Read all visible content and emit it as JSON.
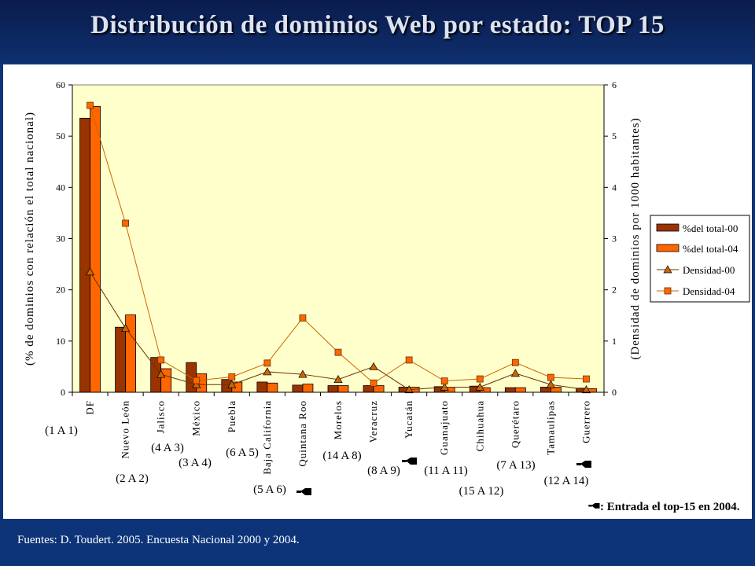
{
  "page": {
    "title": "Distribución de dominios Web por estado: TOP 15",
    "source": "Fuentes: D. Toudert. 2005. Encuesta Nacional 2000 y 2004.",
    "note_text": ": Entrada el top-15 en 2004."
  },
  "colors": {
    "background": "#0d3478",
    "plot_area": "#ffffcc",
    "bar_2000": "#993300",
    "bar_2004": "#ff6600",
    "line_2000": "#663300",
    "line_2004": "#cc6600"
  },
  "chart_data": {
    "type": "bar",
    "title": "",
    "ylabel": "(% de dominios con relación el total nacional)",
    "y2label": "(Densidad de dominios por 1000 habitantes)",
    "ylim": [
      0,
      60
    ],
    "y2lim": [
      0,
      6
    ],
    "yticks": [
      "0",
      "10",
      "20",
      "30",
      "40",
      "50",
      "60"
    ],
    "y2ticks": [
      "0",
      "1",
      "2",
      "3",
      "4",
      "5",
      "6"
    ],
    "legend_position": "right",
    "categories": [
      "DF",
      "Nuevo León",
      "Jalisco",
      "México",
      "Puebla",
      "Baja California",
      "Quintana Roo",
      "Morelos",
      "Veracruz",
      "Yucatán",
      "Guanajuato",
      "Chihuahua",
      "Querétaro",
      "Tamaulipas",
      "Guerrero"
    ],
    "rank_labels": [
      "(1 A 1)",
      "(2 A 2)",
      "(4 A 3)",
      "(3 A 4)",
      "(6 A 5)",
      "(5 A 6)",
      "(14 A 8)",
      "(8 A 9)",
      "(11 A 11)",
      "(15 A 12)",
      "(7 A 13)",
      "(12 A 14)"
    ],
    "new_entry_categories": [
      "Quintana Roo",
      "Yucatán",
      "Guerrero"
    ],
    "series": [
      {
        "name": "%del total-00",
        "kind": "bar",
        "axis": "left",
        "values": [
          53.5,
          12.7,
          6.8,
          5.8,
          2.5,
          2.0,
          1.4,
          1.3,
          1.3,
          1.0,
          1.1,
          1.2,
          0.9,
          1.0,
          0.8
        ]
      },
      {
        "name": "%del total-04",
        "kind": "bar",
        "axis": "left",
        "values": [
          55.8,
          15.1,
          4.6,
          3.6,
          2.0,
          1.8,
          1.6,
          1.3,
          1.3,
          1.0,
          1.0,
          0.9,
          0.9,
          1.0,
          0.7
        ]
      },
      {
        "name": "Densidad-00",
        "kind": "line",
        "marker": "triangle",
        "axis": "right",
        "values": [
          2.35,
          1.25,
          0.35,
          0.15,
          0.15,
          0.4,
          0.35,
          0.25,
          0.5,
          0.05,
          0.1,
          0.1,
          0.37,
          0.15,
          0.05
        ]
      },
      {
        "name": "Densidad-04",
        "kind": "line",
        "marker": "square",
        "axis": "right",
        "values": [
          5.6,
          3.3,
          0.63,
          0.23,
          0.3,
          0.57,
          1.45,
          0.78,
          0.18,
          0.63,
          0.22,
          0.26,
          0.58,
          0.29,
          0.26
        ]
      }
    ]
  }
}
